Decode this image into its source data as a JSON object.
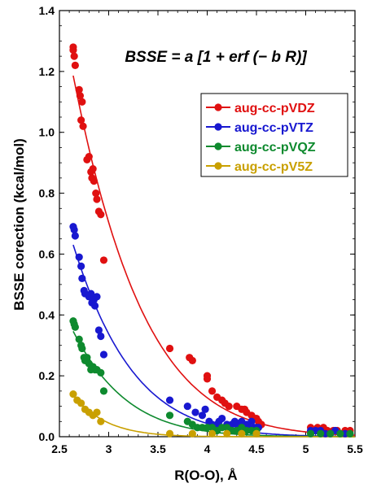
{
  "chart_data": {
    "type": "scatter",
    "title": "",
    "formula": "BSSE = a [1 + erf (− b R)]",
    "xlabel": "R(O-O), Å",
    "ylabel": "BSSE corection (kcal/mol)",
    "xlim": [
      2.5,
      5.5
    ],
    "ylim": [
      0.0,
      1.4
    ],
    "xticks": [
      "2.5",
      "3",
      "3.5",
      "4",
      "4.5",
      "5",
      "5.5"
    ],
    "yticks": [
      "0.0",
      "0.2",
      "0.4",
      "0.6",
      "0.8",
      "1.0",
      "1.2",
      "1.4"
    ],
    "grid": false,
    "legend_position": "top-right",
    "fit_curve": "a[1+erf(-bR)] for each series",
    "series": [
      {
        "name": "aug-cc-pVDZ",
        "color": "#e01010",
        "points": [
          [
            2.64,
            1.28
          ],
          [
            2.64,
            1.27
          ],
          [
            2.65,
            1.25
          ],
          [
            2.66,
            1.22
          ],
          [
            2.7,
            1.14
          ],
          [
            2.71,
            1.12
          ],
          [
            2.73,
            1.1
          ],
          [
            2.72,
            1.04
          ],
          [
            2.74,
            1.02
          ],
          [
            2.78,
            0.91
          ],
          [
            2.8,
            0.92
          ],
          [
            2.82,
            0.87
          ],
          [
            2.83,
            0.85
          ],
          [
            2.84,
            0.88
          ],
          [
            2.85,
            0.84
          ],
          [
            2.87,
            0.8
          ],
          [
            2.88,
            0.78
          ],
          [
            2.9,
            0.74
          ],
          [
            2.92,
            0.73
          ],
          [
            2.95,
            0.58
          ],
          [
            3.62,
            0.29
          ],
          [
            3.82,
            0.26
          ],
          [
            3.85,
            0.25
          ],
          [
            4.0,
            0.2
          ],
          [
            4.0,
            0.19
          ],
          [
            4.05,
            0.15
          ],
          [
            4.1,
            0.13
          ],
          [
            4.15,
            0.12
          ],
          [
            4.18,
            0.11
          ],
          [
            4.22,
            0.1
          ],
          [
            4.3,
            0.1
          ],
          [
            4.35,
            0.09
          ],
          [
            4.38,
            0.09
          ],
          [
            4.4,
            0.08
          ],
          [
            4.45,
            0.07
          ],
          [
            4.48,
            0.06
          ],
          [
            4.5,
            0.06
          ],
          [
            4.52,
            0.05
          ],
          [
            4.55,
            0.04
          ],
          [
            5.05,
            0.03
          ],
          [
            5.12,
            0.03
          ],
          [
            5.18,
            0.03
          ],
          [
            5.22,
            0.02
          ],
          [
            5.28,
            0.02
          ],
          [
            5.32,
            0.02
          ],
          [
            5.4,
            0.02
          ],
          [
            5.45,
            0.02
          ]
        ]
      },
      {
        "name": "aug-cc-pVTZ",
        "color": "#1818d0",
        "points": [
          [
            2.64,
            0.69
          ],
          [
            2.65,
            0.68
          ],
          [
            2.66,
            0.66
          ],
          [
            2.7,
            0.59
          ],
          [
            2.72,
            0.56
          ],
          [
            2.73,
            0.52
          ],
          [
            2.75,
            0.48
          ],
          [
            2.76,
            0.47
          ],
          [
            2.8,
            0.46
          ],
          [
            2.82,
            0.47
          ],
          [
            2.83,
            0.44
          ],
          [
            2.85,
            0.45
          ],
          [
            2.86,
            0.43
          ],
          [
            2.88,
            0.46
          ],
          [
            2.9,
            0.35
          ],
          [
            2.92,
            0.33
          ],
          [
            2.95,
            0.27
          ],
          [
            3.62,
            0.12
          ],
          [
            3.8,
            0.1
          ],
          [
            3.88,
            0.08
          ],
          [
            3.95,
            0.07
          ],
          [
            3.98,
            0.09
          ],
          [
            4.02,
            0.05
          ],
          [
            4.05,
            0.04
          ],
          [
            4.1,
            0.04
          ],
          [
            4.12,
            0.05
          ],
          [
            4.15,
            0.06
          ],
          [
            4.2,
            0.04
          ],
          [
            4.25,
            0.04
          ],
          [
            4.28,
            0.05
          ],
          [
            4.3,
            0.04
          ],
          [
            4.35,
            0.05
          ],
          [
            4.4,
            0.04
          ],
          [
            4.42,
            0.03
          ],
          [
            4.45,
            0.05
          ],
          [
            4.48,
            0.03
          ],
          [
            4.5,
            0.03
          ],
          [
            4.52,
            0.03
          ],
          [
            5.05,
            0.02
          ],
          [
            5.1,
            0.02
          ],
          [
            5.15,
            0.02
          ],
          [
            5.2,
            0.01
          ],
          [
            5.25,
            0.01
          ],
          [
            5.3,
            0.02
          ],
          [
            5.4,
            0.01
          ]
        ]
      },
      {
        "name": "aug-cc-pVQZ",
        "color": "#0e8a2e",
        "points": [
          [
            2.64,
            0.38
          ],
          [
            2.65,
            0.37
          ],
          [
            2.66,
            0.36
          ],
          [
            2.7,
            0.32
          ],
          [
            2.72,
            0.3
          ],
          [
            2.73,
            0.29
          ],
          [
            2.75,
            0.26
          ],
          [
            2.76,
            0.25
          ],
          [
            2.78,
            0.26
          ],
          [
            2.8,
            0.24
          ],
          [
            2.82,
            0.22
          ],
          [
            2.84,
            0.23
          ],
          [
            2.86,
            0.22
          ],
          [
            2.88,
            0.22
          ],
          [
            2.92,
            0.21
          ],
          [
            2.95,
            0.15
          ],
          [
            3.62,
            0.07
          ],
          [
            3.8,
            0.05
          ],
          [
            3.85,
            0.04
          ],
          [
            3.9,
            0.03
          ],
          [
            3.95,
            0.03
          ],
          [
            4.0,
            0.03
          ],
          [
            4.05,
            0.03
          ],
          [
            4.1,
            0.02
          ],
          [
            4.15,
            0.03
          ],
          [
            4.2,
            0.03
          ],
          [
            4.25,
            0.02
          ],
          [
            4.3,
            0.02
          ],
          [
            4.35,
            0.03
          ],
          [
            4.4,
            0.02
          ],
          [
            4.45,
            0.02
          ],
          [
            4.5,
            0.02
          ],
          [
            5.05,
            0.01
          ],
          [
            5.15,
            0.01
          ],
          [
            5.25,
            0.01
          ],
          [
            5.35,
            0.01
          ],
          [
            5.45,
            0.01
          ]
        ]
      },
      {
        "name": "aug-cc-pV5Z",
        "color": "#c9a000",
        "points": [
          [
            2.64,
            0.14
          ],
          [
            2.68,
            0.12
          ],
          [
            2.72,
            0.11
          ],
          [
            2.76,
            0.09
          ],
          [
            2.8,
            0.08
          ],
          [
            2.84,
            0.07
          ],
          [
            2.88,
            0.08
          ],
          [
            2.92,
            0.05
          ],
          [
            3.62,
            0.01
          ],
          [
            3.85,
            0.01
          ],
          [
            4.05,
            0.01
          ],
          [
            4.2,
            0.01
          ],
          [
            4.35,
            0.01
          ],
          [
            4.5,
            0.01
          ]
        ]
      }
    ]
  }
}
